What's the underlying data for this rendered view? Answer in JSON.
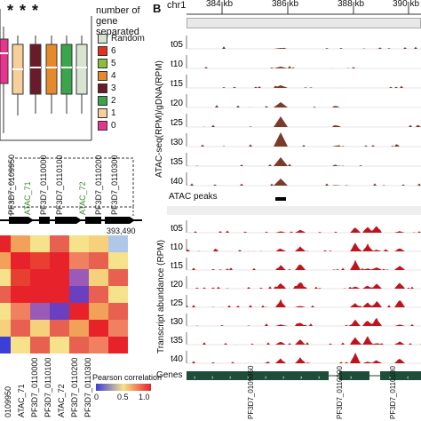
{
  "panel_b_label": "B",
  "boxplot": {
    "stars": "* * *",
    "legend_title": "number of gene separated",
    "legend_items": [
      {
        "label": "Random",
        "color": "#d8e4cf"
      },
      {
        "label": "6",
        "color": "#e8311c"
      },
      {
        "label": "5",
        "color": "#8bbf3a"
      },
      {
        "label": "4",
        "color": "#e6892a"
      },
      {
        "label": "3",
        "color": "#6a1b2a"
      },
      {
        "label": "2",
        "color": "#3aa54a"
      },
      {
        "label": "1",
        "color": "#f6cf9a"
      },
      {
        "label": "0",
        "color": "#e8348e"
      }
    ]
  },
  "gene_map": {
    "labels_top": [
      "PF3D7_0109950",
      "ATAC_71",
      "PF3D7_0110000",
      "PF3D7_0110100",
      "ATAC_72",
      "PF3D7_0110200",
      "PF3D7_0110300"
    ],
    "coordinate": "393,490"
  },
  "heatmap": {
    "x_labels": [
      "0109950",
      "ATAC_71",
      "PF3D7_0110000",
      "PF3D7_0110100",
      "ATAC_72",
      "PF3D7_0110200",
      "PF3D7_0110300"
    ],
    "legend_title": "Pearson correlation",
    "legend_ticks": [
      "0",
      "0.5",
      "1.0"
    ]
  },
  "browser": {
    "chrom": "chr1",
    "ruler": [
      "384 kb",
      "386 kb",
      "388 kb",
      "390 kb"
    ],
    "atac_ylabel": "ATAC-seq(RPM)/gDNA(RPM)",
    "atac_tracks": [
      "t05",
      "t10",
      "t15",
      "t20",
      "t25",
      "t30",
      "t35",
      "t40"
    ],
    "atac_peaks_label": "ATAC peaks",
    "rna_ylabel": "Transcript abundance (RPM)",
    "rna_tracks": [
      "t05",
      "t10",
      "t15",
      "t20",
      "t25",
      "t30",
      "t35",
      "t40"
    ],
    "genes_label": "Genes",
    "gene_names": [
      "PF3D7_0109950",
      "PF3D7_0110000",
      "PF3D7_0110100"
    ],
    "atac_color": "#7a3b2a",
    "rna_color": "#c0141c"
  }
}
